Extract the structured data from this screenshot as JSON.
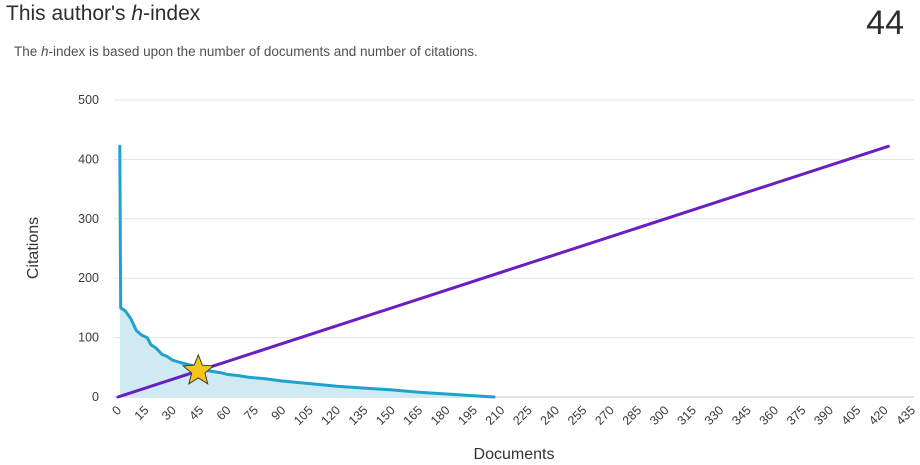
{
  "header": {
    "title_prefix": "This author's ",
    "title_em": "h",
    "title_suffix": "-index",
    "h_index": "44",
    "subtitle_prefix": "The ",
    "subtitle_em": "h",
    "subtitle_suffix": "-index is based upon the number of documents and number of citations."
  },
  "chart_data": {
    "type": "line",
    "xlabel": "Documents",
    "ylabel": "Citations",
    "xlim": [
      0,
      435
    ],
    "ylim": [
      0,
      500
    ],
    "x_ticks": [
      0,
      15,
      30,
      45,
      60,
      75,
      90,
      105,
      120,
      135,
      150,
      165,
      180,
      195,
      210,
      225,
      240,
      255,
      270,
      285,
      300,
      315,
      330,
      345,
      360,
      375,
      390,
      405,
      420,
      435
    ],
    "y_ticks": [
      0,
      100,
      200,
      300,
      400,
      500
    ],
    "grid": true,
    "series": [
      {
        "kind": "citations-area",
        "color": "#1ea3cc",
        "fill": "#cfeaf3",
        "points": [
          [
            1,
            422
          ],
          [
            1.5,
            150
          ],
          [
            4,
            145
          ],
          [
            7,
            132
          ],
          [
            10,
            112
          ],
          [
            13,
            104
          ],
          [
            16,
            100
          ],
          [
            18,
            88
          ],
          [
            21,
            82
          ],
          [
            24,
            72
          ],
          [
            27,
            68
          ],
          [
            30,
            62
          ],
          [
            34,
            58
          ],
          [
            38,
            55
          ],
          [
            42,
            52
          ],
          [
            44,
            48
          ],
          [
            48,
            45
          ],
          [
            52,
            43
          ],
          [
            56,
            41
          ],
          [
            60,
            38
          ],
          [
            66,
            36
          ],
          [
            72,
            33
          ],
          [
            80,
            31
          ],
          [
            90,
            27
          ],
          [
            100,
            24
          ],
          [
            110,
            21
          ],
          [
            120,
            18
          ],
          [
            135,
            15
          ],
          [
            150,
            12
          ],
          [
            165,
            8
          ],
          [
            180,
            5
          ],
          [
            195,
            2
          ],
          [
            206,
            0
          ]
        ]
      },
      {
        "kind": "documents-line",
        "color": "#6a1fc4",
        "points": [
          [
            0,
            0
          ],
          [
            422,
            422
          ]
        ]
      }
    ],
    "marker": {
      "shape": "star",
      "color": "#f5c518",
      "x": 44,
      "y": 44
    }
  }
}
